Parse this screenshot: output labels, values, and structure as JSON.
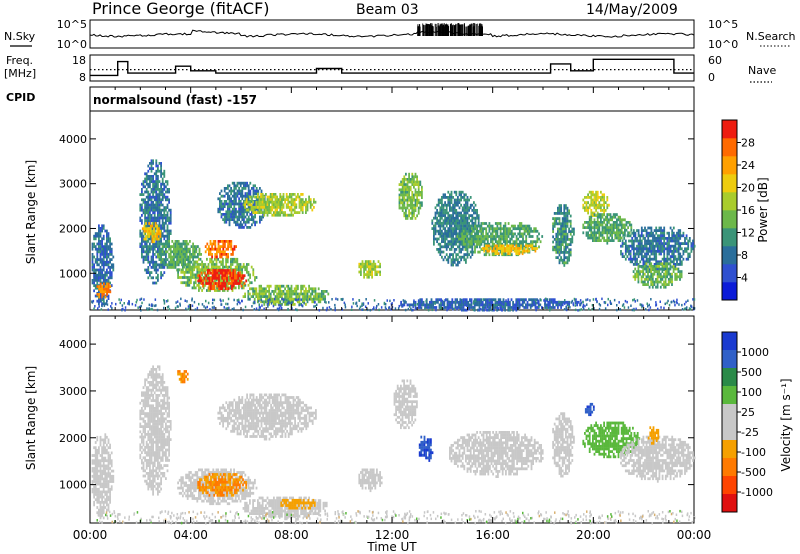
{
  "header": {
    "title": "Prince George (fitACF)",
    "beam": "Beam 03",
    "date": "14/May/2009"
  },
  "chart_data": [
    {
      "type": "line",
      "name": "nsky-nsearch-strip",
      "ylabel_left": "N.Sky",
      "ylabel_right": "N.Search",
      "yticks_left": [
        "10^5",
        "10^0"
      ],
      "yticks_right": [
        "10^5",
        "10^0"
      ],
      "right_legend_style": "dotted"
    },
    {
      "type": "line",
      "name": "freq-nave-strip",
      "ylabel_left": "Freq.",
      "ylabel_left_unit": "[MHz]",
      "ylabel_right": "Nave",
      "yticks_left": [
        "18",
        "8"
      ],
      "yticks_right": [
        "60",
        "0"
      ],
      "ylim_left": [
        8,
        18
      ],
      "ylim_right": [
        0,
        60
      ],
      "freq": {
        "x": [
          0,
          1.1,
          1.1,
          1.5,
          1.5,
          3.4,
          3.4,
          4.0,
          4.0,
          5.0,
          5.0,
          9.0,
          9.0,
          10.0,
          10.0,
          18.3,
          18.3,
          19.1,
          19.1,
          20.0,
          20.0,
          23.2,
          23.2,
          24
        ],
        "y": [
          10,
          10,
          16,
          16,
          11,
          11,
          14,
          14,
          12,
          12,
          11,
          11,
          13,
          13,
          11,
          11,
          15,
          15,
          12,
          12,
          17,
          17,
          11,
          11
        ]
      },
      "nave_level": 27
    },
    {
      "type": "heatmap",
      "name": "power-panel",
      "cpid_label": "CPID",
      "cpid": "normalsound (fast) -157",
      "ylabel": "Slant Range [km]",
      "yticks": [
        "1000",
        "2000",
        "3000",
        "4000"
      ],
      "ylim": [
        180,
        4600
      ],
      "xlim": [
        0,
        24
      ],
      "colorbar_label": "Power [dB]",
      "colorbar_ticks": [
        "4",
        "8",
        "12",
        "16",
        "20",
        "24",
        "28"
      ],
      "colorbar_colors": [
        "#0b1bd8",
        "#2f50d0",
        "#2a6e9b",
        "#3a9478",
        "#6cb84a",
        "#a9cc2c",
        "#eecc0e",
        "#ffa000",
        "#ff6a00",
        "#ee1c10"
      ],
      "regions": [
        {
          "t0": 0.0,
          "t1": 0.9,
          "r0": 300,
          "r1": 2150,
          "v": 7
        },
        {
          "t0": 0.2,
          "t1": 0.8,
          "r0": 450,
          "r1": 850,
          "v": 24
        },
        {
          "t0": 1.9,
          "t1": 3.2,
          "r0": 800,
          "r1": 3600,
          "v": 8
        },
        {
          "t0": 2.0,
          "t1": 2.8,
          "r0": 1700,
          "r1": 2200,
          "v": 20
        },
        {
          "t0": 2.6,
          "t1": 4.4,
          "r0": 1100,
          "r1": 1800,
          "v": 12
        },
        {
          "t0": 3.4,
          "t1": 6.6,
          "r0": 600,
          "r1": 1400,
          "v": 14
        },
        {
          "t0": 4.2,
          "t1": 6.2,
          "r0": 650,
          "r1": 1150,
          "v": 28
        },
        {
          "t0": 4.5,
          "t1": 5.8,
          "r0": 1350,
          "r1": 1800,
          "v": 25
        },
        {
          "t0": 5.0,
          "t1": 7.0,
          "r0": 2000,
          "r1": 3100,
          "v": 8
        },
        {
          "t0": 6.0,
          "t1": 9.0,
          "r0": 2300,
          "r1": 2850,
          "v": 16
        },
        {
          "t0": 6.0,
          "t1": 9.5,
          "r0": 300,
          "r1": 800,
          "v": 14
        },
        {
          "t0": 10.6,
          "t1": 11.6,
          "r0": 900,
          "r1": 1350,
          "v": 16
        },
        {
          "t0": 12.2,
          "t1": 13.2,
          "r0": 2200,
          "r1": 3300,
          "v": 14
        },
        {
          "t0": 12.2,
          "t1": 19.5,
          "r0": 200,
          "r1": 500,
          "v": 6
        },
        {
          "t0": 13.5,
          "t1": 15.5,
          "r0": 1200,
          "r1": 2900,
          "v": 9
        },
        {
          "t0": 14.5,
          "t1": 18.0,
          "r0": 1400,
          "r1": 2200,
          "v": 12
        },
        {
          "t0": 15.5,
          "t1": 17.8,
          "r0": 1450,
          "r1": 1700,
          "v": 21
        },
        {
          "t0": 18.3,
          "t1": 19.2,
          "r0": 1200,
          "r1": 2600,
          "v": 10
        },
        {
          "t0": 19.5,
          "t1": 20.6,
          "r0": 2300,
          "r1": 2900,
          "v": 17
        },
        {
          "t0": 19.5,
          "t1": 21.5,
          "r0": 1700,
          "r1": 2400,
          "v": 12
        },
        {
          "t0": 21.0,
          "t1": 24.0,
          "r0": 1100,
          "r1": 2100,
          "v": 8
        },
        {
          "t0": 21.5,
          "t1": 23.5,
          "r0": 700,
          "r1": 1300,
          "v": 13
        }
      ]
    },
    {
      "type": "heatmap",
      "name": "velocity-panel",
      "xlabel": "Time UT",
      "ylabel": "Slant Range [km]",
      "xticks": [
        "00:00",
        "04:00",
        "08:00",
        "12:00",
        "16:00",
        "20:00",
        "00:00"
      ],
      "yticks": [
        "1000",
        "2000",
        "3000",
        "4000"
      ],
      "ylim": [
        180,
        4600
      ],
      "xlim": [
        0,
        24
      ],
      "colorbar_label": "Velocity [m s⁻¹]",
      "colorbar_ticks": [
        "1000",
        "500",
        "100",
        "25",
        "-25",
        "-100",
        "-500",
        "-1000"
      ],
      "colorbar_colors": [
        "#1a3ad0",
        "#3060c8",
        "#2a8a48",
        "#5ab83c",
        "#c8c8c8",
        "#c8c8c8",
        "#f5a000",
        "#ff7a00",
        "#ff4400",
        "#e01010"
      ],
      "regions": [
        {
          "t0": 0.0,
          "t1": 0.9,
          "r0": 300,
          "r1": 2150,
          "v": 0
        },
        {
          "t0": 1.9,
          "t1": 3.2,
          "r0": 800,
          "r1": 3600,
          "v": 0
        },
        {
          "t0": 3.4,
          "t1": 3.9,
          "r0": 3200,
          "r1": 3500,
          "v": -300
        },
        {
          "t0": 3.4,
          "t1": 6.6,
          "r0": 600,
          "r1": 1400,
          "v": 0
        },
        {
          "t0": 4.2,
          "t1": 6.2,
          "r0": 750,
          "r1": 1300,
          "v": -300
        },
        {
          "t0": 5.0,
          "t1": 9.0,
          "r0": 2000,
          "r1": 3000,
          "v": 0
        },
        {
          "t0": 6.0,
          "t1": 9.5,
          "r0": 300,
          "r1": 800,
          "v": 0
        },
        {
          "t0": 7.5,
          "t1": 9.0,
          "r0": 500,
          "r1": 750,
          "v": -200
        },
        {
          "t0": 10.6,
          "t1": 11.6,
          "r0": 900,
          "r1": 1400,
          "v": 0
        },
        {
          "t0": 12.0,
          "t1": 13.0,
          "r0": 2200,
          "r1": 3300,
          "v": 0
        },
        {
          "t0": 13.0,
          "t1": 13.6,
          "r0": 1500,
          "r1": 2100,
          "v": 700
        },
        {
          "t0": 14.2,
          "t1": 18.0,
          "r0": 1200,
          "r1": 2200,
          "v": 0
        },
        {
          "t0": 18.3,
          "t1": 19.2,
          "r0": 1200,
          "r1": 2600,
          "v": 0
        },
        {
          "t0": 19.5,
          "t1": 21.8,
          "r0": 1600,
          "r1": 2400,
          "v": 80
        },
        {
          "t0": 19.6,
          "t1": 20.0,
          "r0": 2500,
          "r1": 2800,
          "v": 700
        },
        {
          "t0": 21.0,
          "t1": 24.0,
          "r0": 1100,
          "r1": 2100,
          "v": 0
        },
        {
          "t0": 22.1,
          "t1": 22.6,
          "r0": 1900,
          "r1": 2300,
          "v": -200
        }
      ]
    }
  ]
}
